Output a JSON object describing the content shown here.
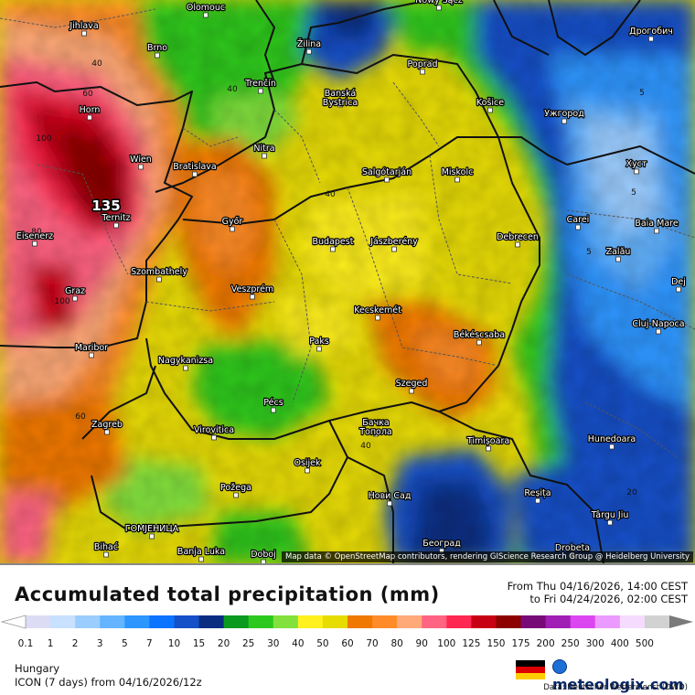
{
  "map": {
    "attribution": "Map data © OpenStreetMap contributors, rendering GIScience Research Group @ Heidelberg University",
    "cities": [
      {
        "name": "Olomouc"
      },
      {
        "name": "Nowy Sącz"
      },
      {
        "name": "Дрогобич"
      },
      {
        "name": "Jihlava"
      },
      {
        "name": "Brno"
      },
      {
        "name": "Žilina"
      },
      {
        "name": "Poprad"
      },
      {
        "name": "Trenčín"
      },
      {
        "name": "Banská Bystrica"
      },
      {
        "name": "Košice"
      },
      {
        "name": "Ужгород"
      },
      {
        "name": "Horn"
      },
      {
        "name": "Nitra"
      },
      {
        "name": "Wien"
      },
      {
        "name": "Bratislava"
      },
      {
        "name": "Salgótarján"
      },
      {
        "name": "Miskolc"
      },
      {
        "name": "Хуст"
      },
      {
        "name": "Ternitz"
      },
      {
        "name": "Győr"
      },
      {
        "name": "Carei"
      },
      {
        "name": "Baia Mare"
      },
      {
        "name": "Eisenerz"
      },
      {
        "name": "Budapest"
      },
      {
        "name": "Jászberény"
      },
      {
        "name": "Debrecen"
      },
      {
        "name": "Szombathely"
      },
      {
        "name": "Zalău"
      },
      {
        "name": "Graz"
      },
      {
        "name": "Veszprém"
      },
      {
        "name": "Dej"
      },
      {
        "name": "Kecskemét"
      },
      {
        "name": "Cluj-Napoca"
      },
      {
        "name": "Paks"
      },
      {
        "name": "Békéscsaba"
      },
      {
        "name": "Maribor"
      },
      {
        "name": "Nagykanizsa"
      },
      {
        "name": "Szeged"
      },
      {
        "name": "Pécs"
      },
      {
        "name": "Zagreb"
      },
      {
        "name": "Бачка Топола"
      },
      {
        "name": "Virovitica"
      },
      {
        "name": "Timișoara"
      },
      {
        "name": "Hunedoara"
      },
      {
        "name": "Osijek"
      },
      {
        "name": "Požega"
      },
      {
        "name": "Нови Сад"
      },
      {
        "name": "Reșița"
      },
      {
        "name": "Târgu Jiu"
      },
      {
        "name": "ГОМЈЕНИЦА"
      },
      {
        "name": "Bihać"
      },
      {
        "name": "Banja Luka"
      },
      {
        "name": "Doboj"
      },
      {
        "name": "Београд"
      },
      {
        "name": "Drobeta"
      }
    ],
    "contour_labels": [
      "40",
      "60",
      "40",
      "100",
      "135",
      "80",
      "100",
      "60",
      "40",
      "5",
      "5",
      "5",
      "20",
      "40"
    ]
  },
  "legend": {
    "title": "Accumulated total precipitation (mm)",
    "from": "From Thu 04/16/2026, 14:00 CEST",
    "to": "to Fri 04/24/2026, 02:00 CEST",
    "labels": [
      "0.1",
      "1",
      "2",
      "3",
      "5",
      "7",
      "10",
      "15",
      "20",
      "25",
      "30",
      "40",
      "50",
      "60",
      "70",
      "80",
      "90",
      "100",
      "125",
      "150",
      "175",
      "200",
      "250",
      "300",
      "400",
      "500"
    ],
    "colors": [
      "#dcdcf5",
      "#c7e1ff",
      "#9ccdff",
      "#64b4ff",
      "#2d96ff",
      "#0a73ff",
      "#1450c8",
      "#0a2d82",
      "#0a9a1e",
      "#2dc81e",
      "#82e13c",
      "#fff01e",
      "#e6dc00",
      "#f07800",
      "#ff8c28",
      "#ffaa78",
      "#ff6482",
      "#ff2850",
      "#c80014",
      "#8c0000",
      "#780a78",
      "#a01eb4",
      "#dc46f0",
      "#eb9bff",
      "#f5dcff",
      "#d2d2d2"
    ]
  },
  "footer": {
    "region": "Hungary",
    "model": "ICON (7 days)  from  04/16/2026/12z",
    "brand": "meteologix.com",
    "source": "Data: Deutscher Wetterdienst (DWD)"
  },
  "colors": {
    "border": "#111111",
    "admin": "#555555"
  }
}
